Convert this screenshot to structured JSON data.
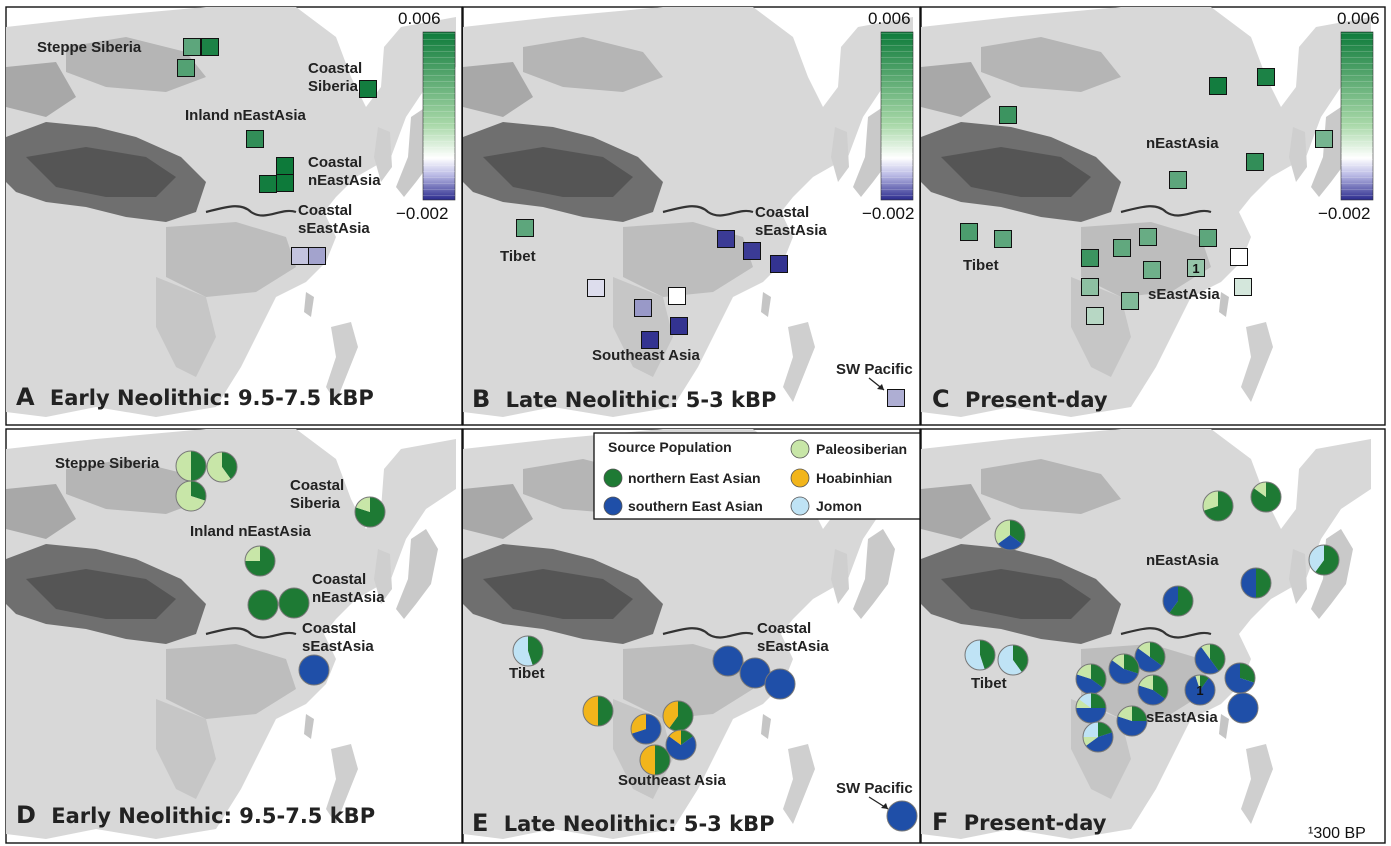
{
  "colorbar": {
    "max_label": "0.006",
    "min_label": "−0.002",
    "max": 0.006,
    "min": -0.002,
    "colors": [
      "#2a2a8c",
      "#ffffff",
      "#0d7a3a"
    ]
  },
  "source_legend": {
    "title": "Source Population",
    "items": [
      {
        "label": "northern East Asian",
        "color": "#1e7a34"
      },
      {
        "label": "southern East Asian",
        "color": "#1f4fa8"
      },
      {
        "label": "Paleosiberian",
        "color": "#c8e6a8"
      },
      {
        "label": "Hoabinhian",
        "color": "#f2b51b"
      },
      {
        "label": "Jomon",
        "color": "#bfe3f5"
      }
    ]
  },
  "footnote": "¹300 BP",
  "panels": [
    {
      "id": "A",
      "kind": "square",
      "letter": "A",
      "title": "Early Neolithic: 9.5-7.5 kBP",
      "labels": [
        {
          "text": "Steppe Siberia",
          "pos": [
            37,
            52
          ]
        },
        {
          "text": "Coastal",
          "pos": [
            308,
            73
          ]
        },
        {
          "text": "Siberia",
          "pos": [
            308,
            91
          ]
        },
        {
          "text": "Inland nEastAsia",
          "pos": [
            185,
            120
          ]
        },
        {
          "text": "Coastal",
          "pos": [
            308,
            167
          ]
        },
        {
          "text": "nEastAsia",
          "pos": [
            308,
            185
          ]
        },
        {
          "text": "Coastal",
          "pos": [
            298,
            215
          ]
        },
        {
          "text": "sEastAsia",
          "pos": [
            298,
            233
          ]
        }
      ],
      "markers": [
        {
          "pos": [
            192,
            47
          ],
          "value": 0.0035
        },
        {
          "pos": [
            210,
            47
          ],
          "value": 0.0055
        },
        {
          "pos": [
            186,
            68
          ],
          "value": 0.0038
        },
        {
          "pos": [
            368,
            89
          ],
          "value": 0.0058
        },
        {
          "pos": [
            255,
            139
          ],
          "value": 0.0048
        },
        {
          "pos": [
            285,
            166
          ],
          "value": 0.0062
        },
        {
          "pos": [
            268,
            184
          ],
          "value": 0.0058
        },
        {
          "pos": [
            285,
            183
          ],
          "value": 0.006
        },
        {
          "pos": [
            300,
            256
          ],
          "value": -0.0004
        },
        {
          "pos": [
            317,
            256
          ],
          "value": -0.0007
        }
      ]
    },
    {
      "id": "B",
      "kind": "square",
      "letter": "B",
      "title": "Late Neolithic: 5-3 kBP",
      "labels": [
        {
          "text": "Coastal",
          "pos": [
            755,
            217
          ]
        },
        {
          "text": "sEastAsia",
          "pos": [
            755,
            235
          ]
        },
        {
          "text": "Tibet",
          "pos": [
            500,
            261
          ]
        },
        {
          "text": "Southeast Asia",
          "pos": [
            592,
            360
          ]
        },
        {
          "text": "SW Pacific",
          "pos": [
            836,
            374
          ]
        }
      ],
      "markers": [
        {
          "pos": [
            525,
            228
          ],
          "value": 0.0035
        },
        {
          "pos": [
            726,
            239
          ],
          "value": -0.0018
        },
        {
          "pos": [
            752,
            251
          ],
          "value": -0.0018
        },
        {
          "pos": [
            779,
            264
          ],
          "value": -0.0019
        },
        {
          "pos": [
            596,
            288
          ],
          "value": -0.0002
        },
        {
          "pos": [
            677,
            296
          ],
          "value": 0.0
        },
        {
          "pos": [
            643,
            308
          ],
          "value": -0.0008
        },
        {
          "pos": [
            679,
            326
          ],
          "value": -0.0019
        },
        {
          "pos": [
            650,
            340
          ],
          "value": -0.0019
        },
        {
          "pos": [
            896,
            398
          ],
          "value": -0.0006
        }
      ]
    },
    {
      "id": "C",
      "kind": "square",
      "letter": "C",
      "title": "Present-day",
      "labels": [
        {
          "text": "nEastAsia",
          "pos": [
            1146,
            148
          ]
        },
        {
          "text": "Tibet",
          "pos": [
            963,
            270
          ]
        },
        {
          "text": "sEastAsia",
          "pos": [
            1148,
            299
          ]
        }
      ],
      "markers": [
        {
          "pos": [
            1266,
            77
          ],
          "value": 0.0055
        },
        {
          "pos": [
            1218,
            86
          ],
          "value": 0.0058
        },
        {
          "pos": [
            1008,
            115
          ],
          "value": 0.0045
        },
        {
          "pos": [
            1324,
            139
          ],
          "value": 0.0028
        },
        {
          "pos": [
            1255,
            162
          ],
          "value": 0.0048
        },
        {
          "pos": [
            1178,
            180
          ],
          "value": 0.0035
        },
        {
          "pos": [
            969,
            232
          ],
          "value": 0.004
        },
        {
          "pos": [
            1003,
            239
          ],
          "value": 0.0035
        },
        {
          "pos": [
            1148,
            237
          ],
          "value": 0.0032
        },
        {
          "pos": [
            1208,
            238
          ],
          "value": 0.0035
        },
        {
          "pos": [
            1122,
            248
          ],
          "value": 0.0034
        },
        {
          "pos": [
            1090,
            258
          ],
          "value": 0.0045
        },
        {
          "pos": [
            1239,
            257
          ],
          "value": 0.0
        },
        {
          "pos": [
            1152,
            270
          ],
          "value": 0.003
        },
        {
          "pos": [
            1196,
            268
          ],
          "value": 0.002,
          "note": "1"
        },
        {
          "pos": [
            1090,
            287
          ],
          "value": 0.0022
        },
        {
          "pos": [
            1243,
            287
          ],
          "value": 0.0006
        },
        {
          "pos": [
            1130,
            301
          ],
          "value": 0.0025
        },
        {
          "pos": [
            1095,
            316
          ],
          "value": 0.0012
        }
      ]
    },
    {
      "id": "D",
      "kind": "pie",
      "letter": "D",
      "title": "Early Neolithic: 9.5-7.5 kBP",
      "labels": [
        {
          "text": "Steppe Siberia",
          "pos": [
            55,
            468
          ]
        },
        {
          "text": "Coastal",
          "pos": [
            290,
            490
          ]
        },
        {
          "text": "Siberia",
          "pos": [
            290,
            508
          ]
        },
        {
          "text": "Inland nEastAsia",
          "pos": [
            190,
            536
          ]
        },
        {
          "text": "Coastal",
          "pos": [
            312,
            584
          ]
        },
        {
          "text": "nEastAsia",
          "pos": [
            312,
            602
          ]
        },
        {
          "text": "Coastal",
          "pos": [
            302,
            633
          ]
        },
        {
          "text": "sEastAsia",
          "pos": [
            302,
            651
          ]
        }
      ],
      "markers": [
        {
          "pos": [
            191,
            466
          ],
          "shares": [
            0.5,
            0.0,
            0.5,
            0.0,
            0.0
          ]
        },
        {
          "pos": [
            222,
            467
          ],
          "shares": [
            0.4,
            0.0,
            0.6,
            0.0,
            0.0
          ]
        },
        {
          "pos": [
            191,
            496
          ],
          "shares": [
            0.3,
            0.0,
            0.7,
            0.0,
            0.0
          ]
        },
        {
          "pos": [
            370,
            512
          ],
          "shares": [
            0.8,
            0.0,
            0.2,
            0.0,
            0.0
          ]
        },
        {
          "pos": [
            260,
            561
          ],
          "shares": [
            0.75,
            0.0,
            0.25,
            0.0,
            0.0
          ]
        },
        {
          "pos": [
            263,
            605
          ],
          "shares": [
            1.0,
            0.0,
            0.0,
            0.0,
            0.0
          ]
        },
        {
          "pos": [
            294,
            603
          ],
          "shares": [
            1.0,
            0.0,
            0.0,
            0.0,
            0.0
          ]
        },
        {
          "pos": [
            314,
            670
          ],
          "shares": [
            0.0,
            1.0,
            0.0,
            0.0,
            0.0
          ]
        }
      ]
    },
    {
      "id": "E",
      "kind": "pie",
      "letter": "E",
      "title": "Late Neolithic: 5-3 kBP",
      "labels": [
        {
          "text": "Coastal",
          "pos": [
            757,
            633
          ]
        },
        {
          "text": "sEastAsia",
          "pos": [
            757,
            651
          ]
        },
        {
          "text": "Tibet",
          "pos": [
            509,
            678
          ]
        },
        {
          "text": "Southeast Asia",
          "pos": [
            618,
            785
          ]
        },
        {
          "text": "SW Pacific",
          "pos": [
            836,
            793
          ]
        }
      ],
      "markers": [
        {
          "pos": [
            528,
            651
          ],
          "shares": [
            0.45,
            0.0,
            0.0,
            0.0,
            0.55
          ]
        },
        {
          "pos": [
            728,
            661
          ],
          "shares": [
            0.0,
            1.0,
            0.0,
            0.0,
            0.0
          ]
        },
        {
          "pos": [
            755,
            673
          ],
          "shares": [
            0.0,
            1.0,
            0.0,
            0.0,
            0.0
          ]
        },
        {
          "pos": [
            780,
            684
          ],
          "shares": [
            0.0,
            1.0,
            0.0,
            0.0,
            0.0
          ]
        },
        {
          "pos": [
            598,
            711
          ],
          "shares": [
            0.5,
            0.0,
            0.0,
            0.5,
            0.0
          ]
        },
        {
          "pos": [
            678,
            716
          ],
          "shares": [
            0.6,
            0.0,
            0.0,
            0.4,
            0.0
          ]
        },
        {
          "pos": [
            646,
            729
          ],
          "shares": [
            0.0,
            0.7,
            0.0,
            0.3,
            0.0
          ]
        },
        {
          "pos": [
            681,
            745
          ],
          "shares": [
            0.15,
            0.7,
            0.0,
            0.15,
            0.0
          ]
        },
        {
          "pos": [
            655,
            760
          ],
          "shares": [
            0.5,
            0.0,
            0.0,
            0.5,
            0.0
          ]
        },
        {
          "pos": [
            902,
            816
          ],
          "shares": [
            0.0,
            1.0,
            0.0,
            0.0,
            0.0
          ]
        }
      ]
    },
    {
      "id": "F",
      "kind": "pie",
      "letter": "F",
      "title": "Present-day",
      "labels": [
        {
          "text": "nEastAsia",
          "pos": [
            1146,
            565
          ]
        },
        {
          "text": "Tibet",
          "pos": [
            971,
            688
          ]
        },
        {
          "text": "sEastAsia",
          "pos": [
            1146,
            722
          ]
        }
      ],
      "markers": [
        {
          "pos": [
            1218,
            506
          ],
          "shares": [
            0.7,
            0.0,
            0.3,
            0.0,
            0.0
          ]
        },
        {
          "pos": [
            1266,
            497
          ],
          "shares": [
            0.85,
            0.0,
            0.15,
            0.0,
            0.0
          ]
        },
        {
          "pos": [
            1010,
            535
          ],
          "shares": [
            0.35,
            0.3,
            0.35,
            0.0,
            0.0
          ]
        },
        {
          "pos": [
            1324,
            560
          ],
          "shares": [
            0.6,
            0.0,
            0.0,
            0.0,
            0.4
          ]
        },
        {
          "pos": [
            1256,
            583
          ],
          "shares": [
            0.5,
            0.5,
            0.0,
            0.0,
            0.0
          ]
        },
        {
          "pos": [
            1178,
            601
          ],
          "shares": [
            0.6,
            0.4,
            0.0,
            0.0,
            0.0
          ]
        },
        {
          "pos": [
            980,
            655
          ],
          "shares": [
            0.45,
            0.0,
            0.0,
            0.0,
            0.55
          ]
        },
        {
          "pos": [
            1013,
            660
          ],
          "shares": [
            0.4,
            0.0,
            0.0,
            0.0,
            0.6
          ]
        },
        {
          "pos": [
            1150,
            657
          ],
          "shares": [
            0.35,
            0.5,
            0.15,
            0.0,
            0.0
          ]
        },
        {
          "pos": [
            1210,
            659
          ],
          "shares": [
            0.4,
            0.5,
            0.1,
            0.0,
            0.0
          ]
        },
        {
          "pos": [
            1124,
            669
          ],
          "shares": [
            0.3,
            0.55,
            0.15,
            0.0,
            0.0
          ]
        },
        {
          "pos": [
            1091,
            679
          ],
          "shares": [
            0.35,
            0.45,
            0.2,
            0.0,
            0.0
          ]
        },
        {
          "pos": [
            1240,
            678
          ],
          "shares": [
            0.3,
            0.7,
            0.0,
            0.0,
            0.0
          ]
        },
        {
          "pos": [
            1153,
            690
          ],
          "shares": [
            0.35,
            0.45,
            0.2,
            0.0,
            0.0
          ]
        },
        {
          "pos": [
            1200,
            690
          ],
          "shares": [
            0.1,
            0.85,
            0.05,
            0.0,
            0.0
          ],
          "note": "1"
        },
        {
          "pos": [
            1091,
            708
          ],
          "shares": [
            0.25,
            0.5,
            0.1,
            0.0,
            0.15
          ]
        },
        {
          "pos": [
            1243,
            708
          ],
          "shares": [
            0.0,
            1.0,
            0.0,
            0.0,
            0.0
          ]
        },
        {
          "pos": [
            1132,
            721
          ],
          "shares": [
            0.25,
            0.55,
            0.2,
            0.0,
            0.0
          ]
        },
        {
          "pos": [
            1098,
            737
          ],
          "shares": [
            0.2,
            0.45,
            0.1,
            0.0,
            0.25
          ]
        }
      ]
    }
  ]
}
